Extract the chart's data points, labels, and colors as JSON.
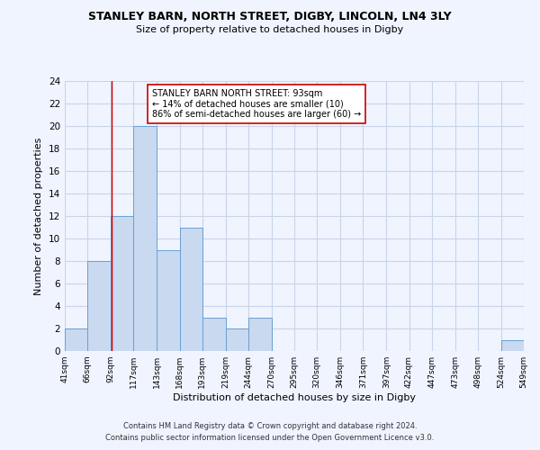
{
  "title": "STANLEY BARN, NORTH STREET, DIGBY, LINCOLN, LN4 3LY",
  "subtitle": "Size of property relative to detached houses in Digby",
  "xlabel": "Distribution of detached houses by size in Digby",
  "ylabel": "Number of detached properties",
  "bin_edges": [
    41,
    66,
    92,
    117,
    143,
    168,
    193,
    219,
    244,
    270,
    295,
    320,
    346,
    371,
    397,
    422,
    447,
    473,
    498,
    524,
    549
  ],
  "bin_counts": [
    2,
    8,
    12,
    20,
    9,
    11,
    3,
    2,
    3,
    0,
    0,
    0,
    0,
    0,
    0,
    0,
    0,
    0,
    0,
    1
  ],
  "bar_color": "#c8d9f0",
  "bar_edge_color": "#6aa0d4",
  "property_line_x": 93,
  "property_line_color": "#cc0000",
  "annotation_text": "STANLEY BARN NORTH STREET: 93sqm\n← 14% of detached houses are smaller (10)\n86% of semi-detached houses are larger (60) →",
  "annotation_box_color": "white",
  "annotation_box_edge_color": "#cc0000",
  "ylim": [
    0,
    24
  ],
  "yticks": [
    0,
    2,
    4,
    6,
    8,
    10,
    12,
    14,
    16,
    18,
    20,
    22,
    24
  ],
  "tick_labels": [
    "41sqm",
    "66sqm",
    "92sqm",
    "117sqm",
    "143sqm",
    "168sqm",
    "193sqm",
    "219sqm",
    "244sqm",
    "270sqm",
    "295sqm",
    "320sqm",
    "346sqm",
    "371sqm",
    "397sqm",
    "422sqm",
    "447sqm",
    "473sqm",
    "498sqm",
    "524sqm",
    "549sqm"
  ],
  "footer_line1": "Contains HM Land Registry data © Crown copyright and database right 2024.",
  "footer_line2": "Contains public sector information licensed under the Open Government Licence v3.0.",
  "bg_color": "#f0f4ff",
  "grid_color": "#c8d4e8"
}
